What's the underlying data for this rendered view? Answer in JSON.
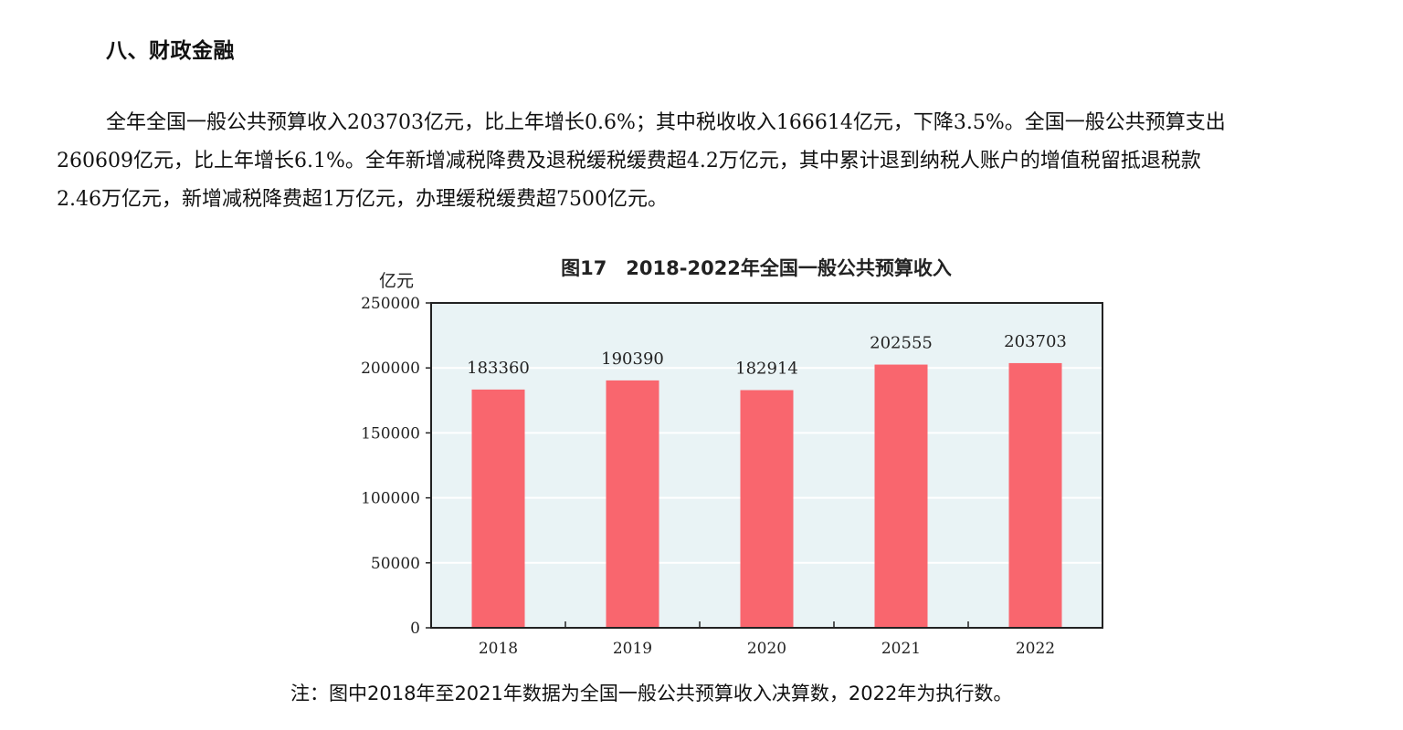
{
  "section": {
    "heading": "八、财政金融",
    "paragraph_lines": [
      "全年全国一般公共预算收入203703亿元，比上年增长0.6%；其中税收收入166614亿元，下降3.5%。全国一般公共预算支出",
      "260609亿元，比上年增长6.1%。全年新增减税降费及退税缓税缓费超4.2万亿元，其中累计退到纳税人账户的增值税留抵退税款",
      "2.46万亿元，新增减税降费超1万亿元，办理缓税缓费超7500亿元。"
    ]
  },
  "chart_data": {
    "type": "bar",
    "title": "图17　2018-2022年全国一般公共预算收入",
    "ylabel": "亿元",
    "xlabel": "",
    "categories": [
      "2018",
      "2019",
      "2020",
      "2021",
      "2022"
    ],
    "values": [
      183360,
      190390,
      182914,
      202555,
      203703
    ],
    "data_labels": [
      "183360",
      "190390",
      "182914",
      "202555",
      "203703"
    ],
    "ylim": [
      0,
      250000
    ],
    "yticks": [
      0,
      50000,
      100000,
      150000,
      200000,
      250000
    ],
    "ytick_labels": [
      "0",
      "50000",
      "100000",
      "150000",
      "200000",
      "250000"
    ],
    "grid": true,
    "colors": {
      "bar": "#f9666e",
      "plot_background": "#e9f3f5",
      "gridline": "#ffffff",
      "axis": "#222222"
    }
  },
  "note": "注：图中2018年至2021年数据为全国一般公共预算收入决算数，2022年为执行数。"
}
